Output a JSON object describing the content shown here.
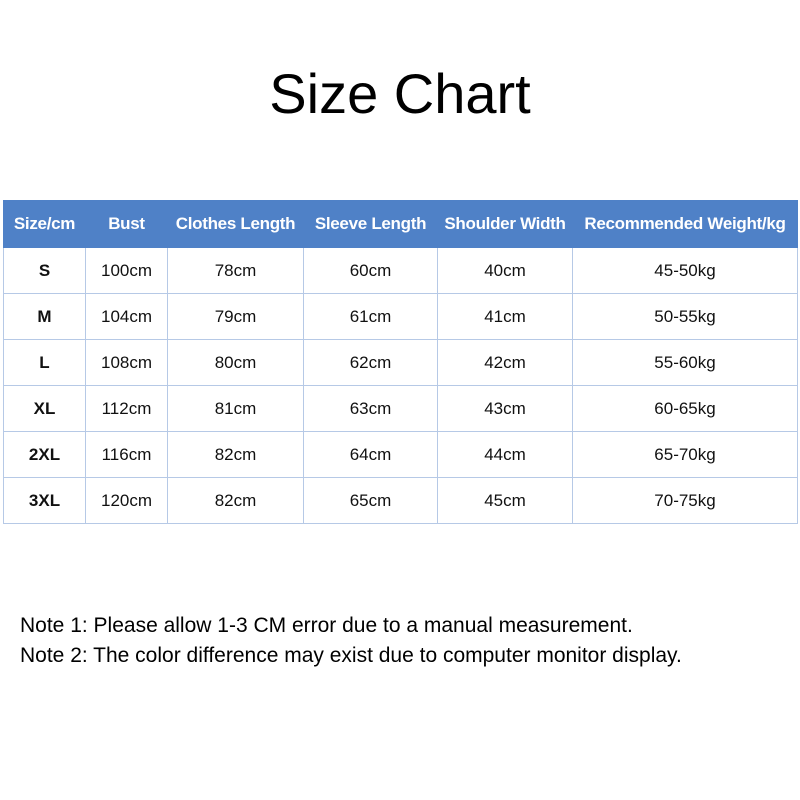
{
  "title": "Size Chart",
  "table": {
    "header": [
      "Size/cm",
      "Bust",
      "Clothes Length",
      "Sleeve Length",
      "Shoulder Width",
      "Recommended Weight/kg"
    ],
    "rows": [
      [
        "S",
        "100cm",
        "78cm",
        "60cm",
        "40cm",
        "45-50kg"
      ],
      [
        "M",
        "104cm",
        "79cm",
        "61cm",
        "41cm",
        "50-55kg"
      ],
      [
        "L",
        "108cm",
        "80cm",
        "62cm",
        "42cm",
        "55-60kg"
      ],
      [
        "XL",
        "112cm",
        "81cm",
        "63cm",
        "43cm",
        "60-65kg"
      ],
      [
        "2XL",
        "116cm",
        "82cm",
        "64cm",
        "44cm",
        "65-70kg"
      ],
      [
        "3XL",
        "120cm",
        "82cm",
        "65cm",
        "45cm",
        "70-75kg"
      ]
    ]
  },
  "notes": [
    "Note 1: Please allow 1-3 CM error due to a manual measurement.",
    "Note 2: The color difference may exist due to computer monitor display."
  ]
}
